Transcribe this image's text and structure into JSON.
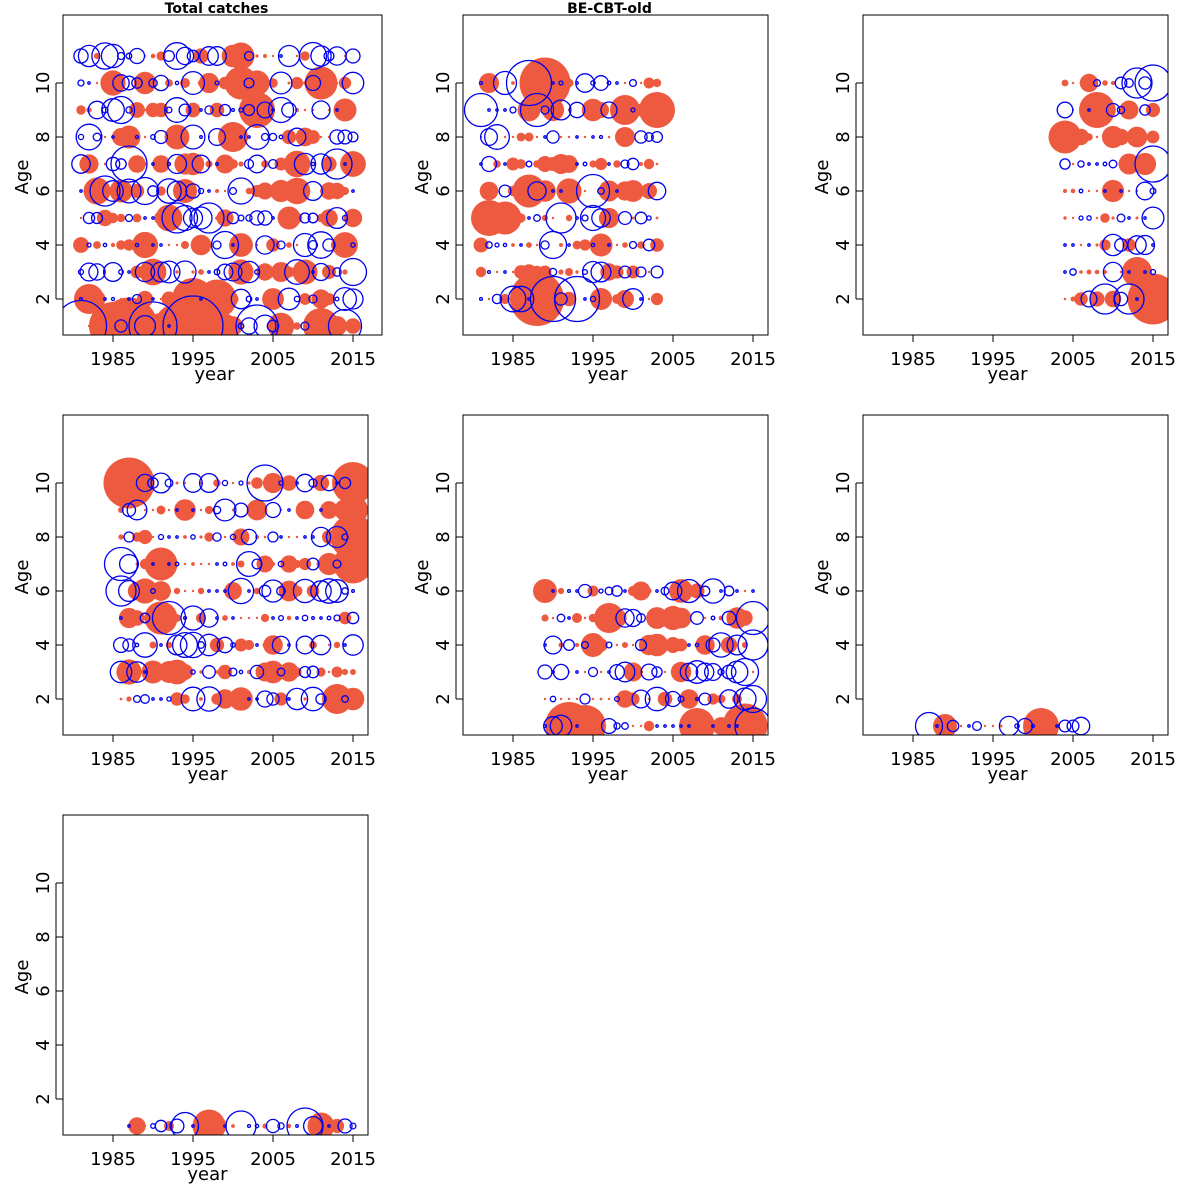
{
  "figure": {
    "style": {
      "positive_color": "#ee5a3f",
      "negative_color": "#0000ee",
      "frame_color": "#000000"
    },
    "layout": {
      "columns": 3,
      "rows": 3
    }
  },
  "chart_data": [
    {
      "type": "scatter",
      "variant": "bubble-residuals",
      "title": "Total catches",
      "xlabel": "year",
      "ylabel": "Age",
      "xlim": [
        1980,
        2016
      ],
      "ylim": [
        0.2,
        12
      ],
      "xticks": [
        "1985",
        "1995",
        "2005",
        "2015"
      ],
      "yticks": [
        "2",
        "4",
        "6",
        "8",
        "10"
      ],
      "years": [
        1981,
        2015
      ],
      "ages": [
        1,
        2,
        3,
        4,
        5,
        6,
        7,
        8,
        9,
        10,
        11
      ],
      "seed": 11,
      "size": 1.0,
      "big": [
        [
          1981,
          1,
          -0.85
        ],
        [
          1985,
          1,
          0.8
        ],
        [
          1987,
          1,
          0.95
        ],
        [
          1990,
          1,
          -0.8
        ],
        [
          1993,
          1,
          0.75
        ],
        [
          1995,
          1,
          -1.0
        ],
        [
          1996,
          1,
          0.95
        ],
        [
          1997,
          1,
          0.7
        ],
        [
          2003,
          1,
          -0.7
        ],
        [
          2011,
          1,
          0.6
        ],
        [
          2014,
          1,
          -0.55
        ],
        [
          1995,
          2,
          0.7
        ],
        [
          1998,
          2,
          0.65
        ],
        [
          1982,
          2,
          0.5
        ],
        [
          1987,
          7,
          -0.6
        ],
        [
          2013,
          7,
          -0.5
        ],
        [
          1986,
          9,
          -0.45
        ],
        [
          2001,
          10,
          0.55
        ],
        [
          2011,
          10,
          0.55
        ],
        [
          2001,
          11,
          0.45
        ],
        [
          1984,
          6,
          -0.5
        ],
        [
          1983,
          6,
          0.45
        ],
        [
          1989,
          6,
          -0.45
        ],
        [
          1993,
          5,
          -0.5
        ],
        [
          1997,
          5,
          -0.5
        ],
        [
          1999,
          4,
          -0.45
        ],
        [
          2000,
          8,
          0.5
        ],
        [
          2003,
          9,
          0.6
        ]
      ]
    },
    {
      "type": "scatter",
      "variant": "bubble-residuals",
      "title": "BE-CBT-old",
      "xlabel": "year",
      "ylabel": "Age",
      "xlim": [
        1980,
        2016
      ],
      "ylim": [
        0.2,
        12
      ],
      "xticks": [
        "1985",
        "1995",
        "2005",
        "2015"
      ],
      "yticks": [
        "2",
        "4",
        "6",
        "8",
        "10"
      ],
      "years": [
        1981,
        2003
      ],
      "ages": [
        2,
        3,
        4,
        5,
        6,
        7,
        8,
        9,
        10
      ],
      "seed": 23,
      "size": 0.95,
      "big": [
        [
          1988,
          2,
          0.9
        ],
        [
          1990,
          2,
          -0.75
        ],
        [
          1993,
          2,
          -0.75
        ],
        [
          1987,
          10,
          -0.75
        ],
        [
          1989,
          10,
          0.85
        ],
        [
          1982,
          5,
          0.6
        ],
        [
          1984,
          5,
          0.55
        ],
        [
          1987,
          6,
          0.55
        ],
        [
          1995,
          6,
          -0.55
        ],
        [
          2003,
          9,
          0.6
        ],
        [
          1981,
          9,
          -0.55
        ],
        [
          1988,
          9,
          -0.55
        ],
        [
          1999,
          9,
          0.5
        ],
        [
          1991,
          5,
          -0.5
        ],
        [
          1990,
          4,
          -0.45
        ]
      ]
    },
    {
      "type": "scatter",
      "variant": "bubble-residuals",
      "title": "",
      "xlabel": "year",
      "ylabel": "Age",
      "xlim": [
        1980,
        2016
      ],
      "ylim": [
        0.2,
        12
      ],
      "xticks": [
        "1985",
        "1995",
        "2005",
        "2015"
      ],
      "yticks": [
        "2",
        "4",
        "6",
        "8",
        "10"
      ],
      "years": [
        2004,
        2015
      ],
      "ages": [
        2,
        3,
        4,
        5,
        6,
        7,
        8,
        9,
        10
      ],
      "seed": 37,
      "size": 0.9,
      "big": [
        [
          2015,
          2,
          0.85
        ],
        [
          2015,
          10,
          -0.6
        ],
        [
          2015,
          7,
          -0.6
        ],
        [
          2008,
          9,
          0.6
        ],
        [
          2004,
          8,
          0.55
        ],
        [
          2013,
          3,
          0.5
        ],
        [
          2009,
          2,
          -0.5
        ],
        [
          2012,
          2,
          -0.5
        ],
        [
          2013,
          10,
          -0.5
        ]
      ]
    },
    {
      "type": "scatter",
      "variant": "bubble-residuals",
      "title": "",
      "xlabel": "year",
      "ylabel": "Age",
      "xlim": [
        1980,
        2016
      ],
      "ylim": [
        0.2,
        12
      ],
      "xticks": [
        "1985",
        "1995",
        "2005",
        "2015"
      ],
      "yticks": [
        "2",
        "4",
        "6",
        "8",
        "10"
      ],
      "years": [
        1986,
        2015
      ],
      "ages": [
        2,
        3,
        4,
        5,
        6,
        7,
        8,
        9,
        10
      ],
      "seed": 41,
      "size": 0.95,
      "big": [
        [
          1987,
          10,
          0.85
        ],
        [
          2015,
          10,
          0.7
        ],
        [
          2015,
          8,
          0.75
        ],
        [
          2015,
          7,
          0.65
        ],
        [
          2013,
          2,
          -0.65
        ],
        [
          2013,
          2,
          0.5
        ],
        [
          1991,
          5,
          0.55
        ],
        [
          1992,
          5,
          -0.55
        ],
        [
          1991,
          7,
          0.55
        ],
        [
          1986,
          7,
          -0.55
        ],
        [
          1986,
          6,
          -0.5
        ],
        [
          2004,
          10,
          -0.6
        ],
        [
          2015,
          9,
          0.5
        ]
      ]
    },
    {
      "type": "scatter",
      "variant": "bubble-residuals",
      "title": "",
      "xlabel": "year",
      "ylabel": "Age",
      "xlim": [
        1980,
        2016
      ],
      "ylim": [
        0.2,
        12
      ],
      "xticks": [
        "1985",
        "1995",
        "2005",
        "2015"
      ],
      "yticks": [
        "2",
        "4",
        "6",
        "8",
        "10"
      ],
      "years": [
        1989,
        2015
      ],
      "ages": [
        1,
        2,
        3,
        4,
        5,
        6
      ],
      "seed": 53,
      "size": 0.9,
      "big": [
        [
          1992,
          1,
          0.8
        ],
        [
          1994,
          1,
          0.7
        ],
        [
          2014,
          1,
          0.75
        ],
        [
          2015,
          1,
          -0.6
        ],
        [
          2008,
          1,
          0.6
        ],
        [
          2015,
          5,
          -0.55
        ],
        [
          2015,
          4,
          -0.5
        ],
        [
          2014,
          3,
          -0.45
        ],
        [
          1997,
          5,
          0.5
        ],
        [
          1989,
          6,
          0.4
        ],
        [
          2015,
          2,
          -0.45
        ]
      ]
    },
    {
      "type": "scatter",
      "variant": "bubble-residuals",
      "title": "",
      "xlabel": "year",
      "ylabel": "Age",
      "xlim": [
        1980,
        2016
      ],
      "ylim": [
        0.2,
        12
      ],
      "xticks": [
        "1985",
        "1995",
        "2005",
        "2015"
      ],
      "yticks": [
        "2",
        "4",
        "6",
        "8",
        "10"
      ],
      "years": [
        1987,
        2006
      ],
      "ages": [
        1
      ],
      "seed": 67,
      "size": 0.75,
      "big": [
        [
          2001,
          1,
          0.6
        ],
        [
          1987,
          1,
          -0.45
        ],
        [
          1989,
          1,
          0.4
        ]
      ]
    },
    {
      "type": "scatter",
      "variant": "bubble-residuals",
      "title": "",
      "xlabel": "year",
      "ylabel": "Age",
      "xlim": [
        1980,
        2016
      ],
      "ylim": [
        0.2,
        12
      ],
      "xticks": [
        "1985",
        "1995",
        "2005",
        "2015"
      ],
      "yticks": [
        "2",
        "4",
        "6",
        "8",
        "10"
      ],
      "years": [
        1987,
        2015
      ],
      "ages": [
        1
      ],
      "seed": 79,
      "size": 0.75,
      "big": [
        [
          1997,
          1,
          0.55
        ],
        [
          2009,
          1,
          -0.6
        ],
        [
          2001,
          1,
          -0.5
        ],
        [
          1994,
          1,
          -0.45
        ],
        [
          2011,
          1,
          0.45
        ]
      ]
    }
  ]
}
